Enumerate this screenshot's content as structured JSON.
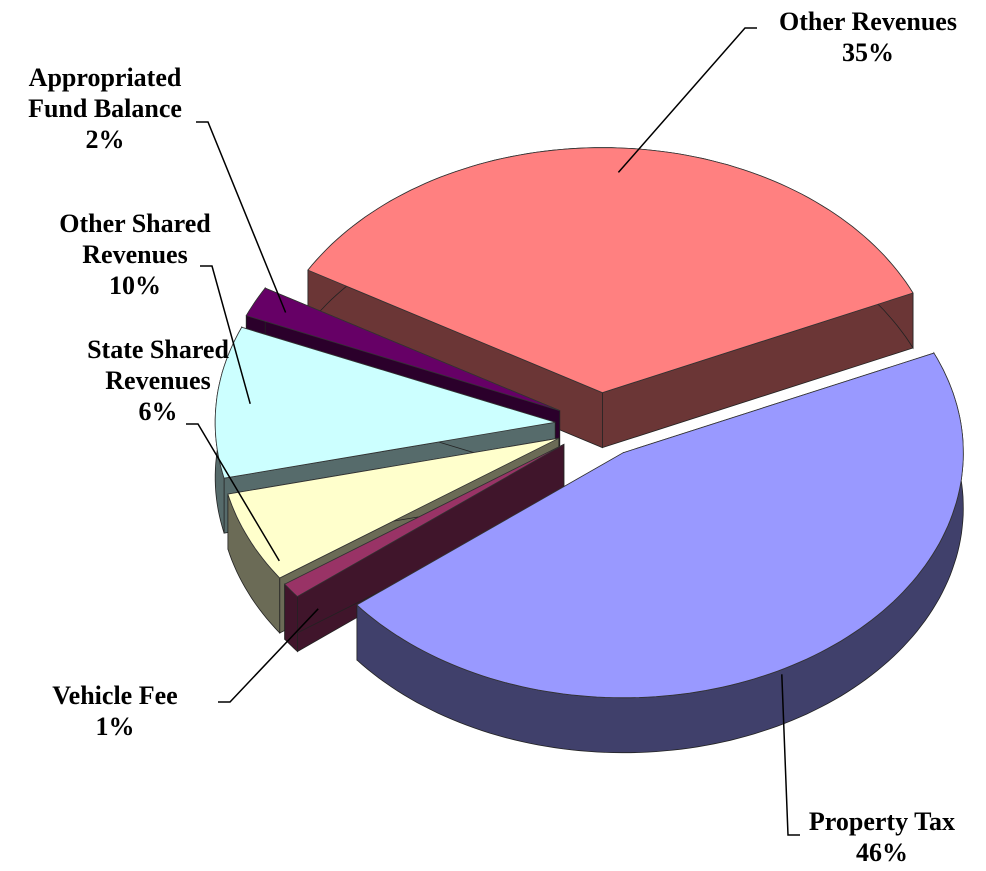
{
  "chart_data": {
    "type": "pie",
    "style": "3d-exploded",
    "categories": [
      "Other Revenues",
      "Property Tax",
      "Vehicle Fee",
      "State Shared Revenues",
      "Other Shared Revenues",
      "Appropriated Fund Balance"
    ],
    "values": [
      35,
      46,
      1,
      6,
      10,
      2
    ],
    "value_labels": [
      "35%",
      "46%",
      "1%",
      "6%",
      "10%",
      "2%"
    ],
    "colors": [
      "#ff8080",
      "#9999ff",
      "#993366",
      "#ffffcc",
      "#ccffff",
      "#660066"
    ]
  }
}
